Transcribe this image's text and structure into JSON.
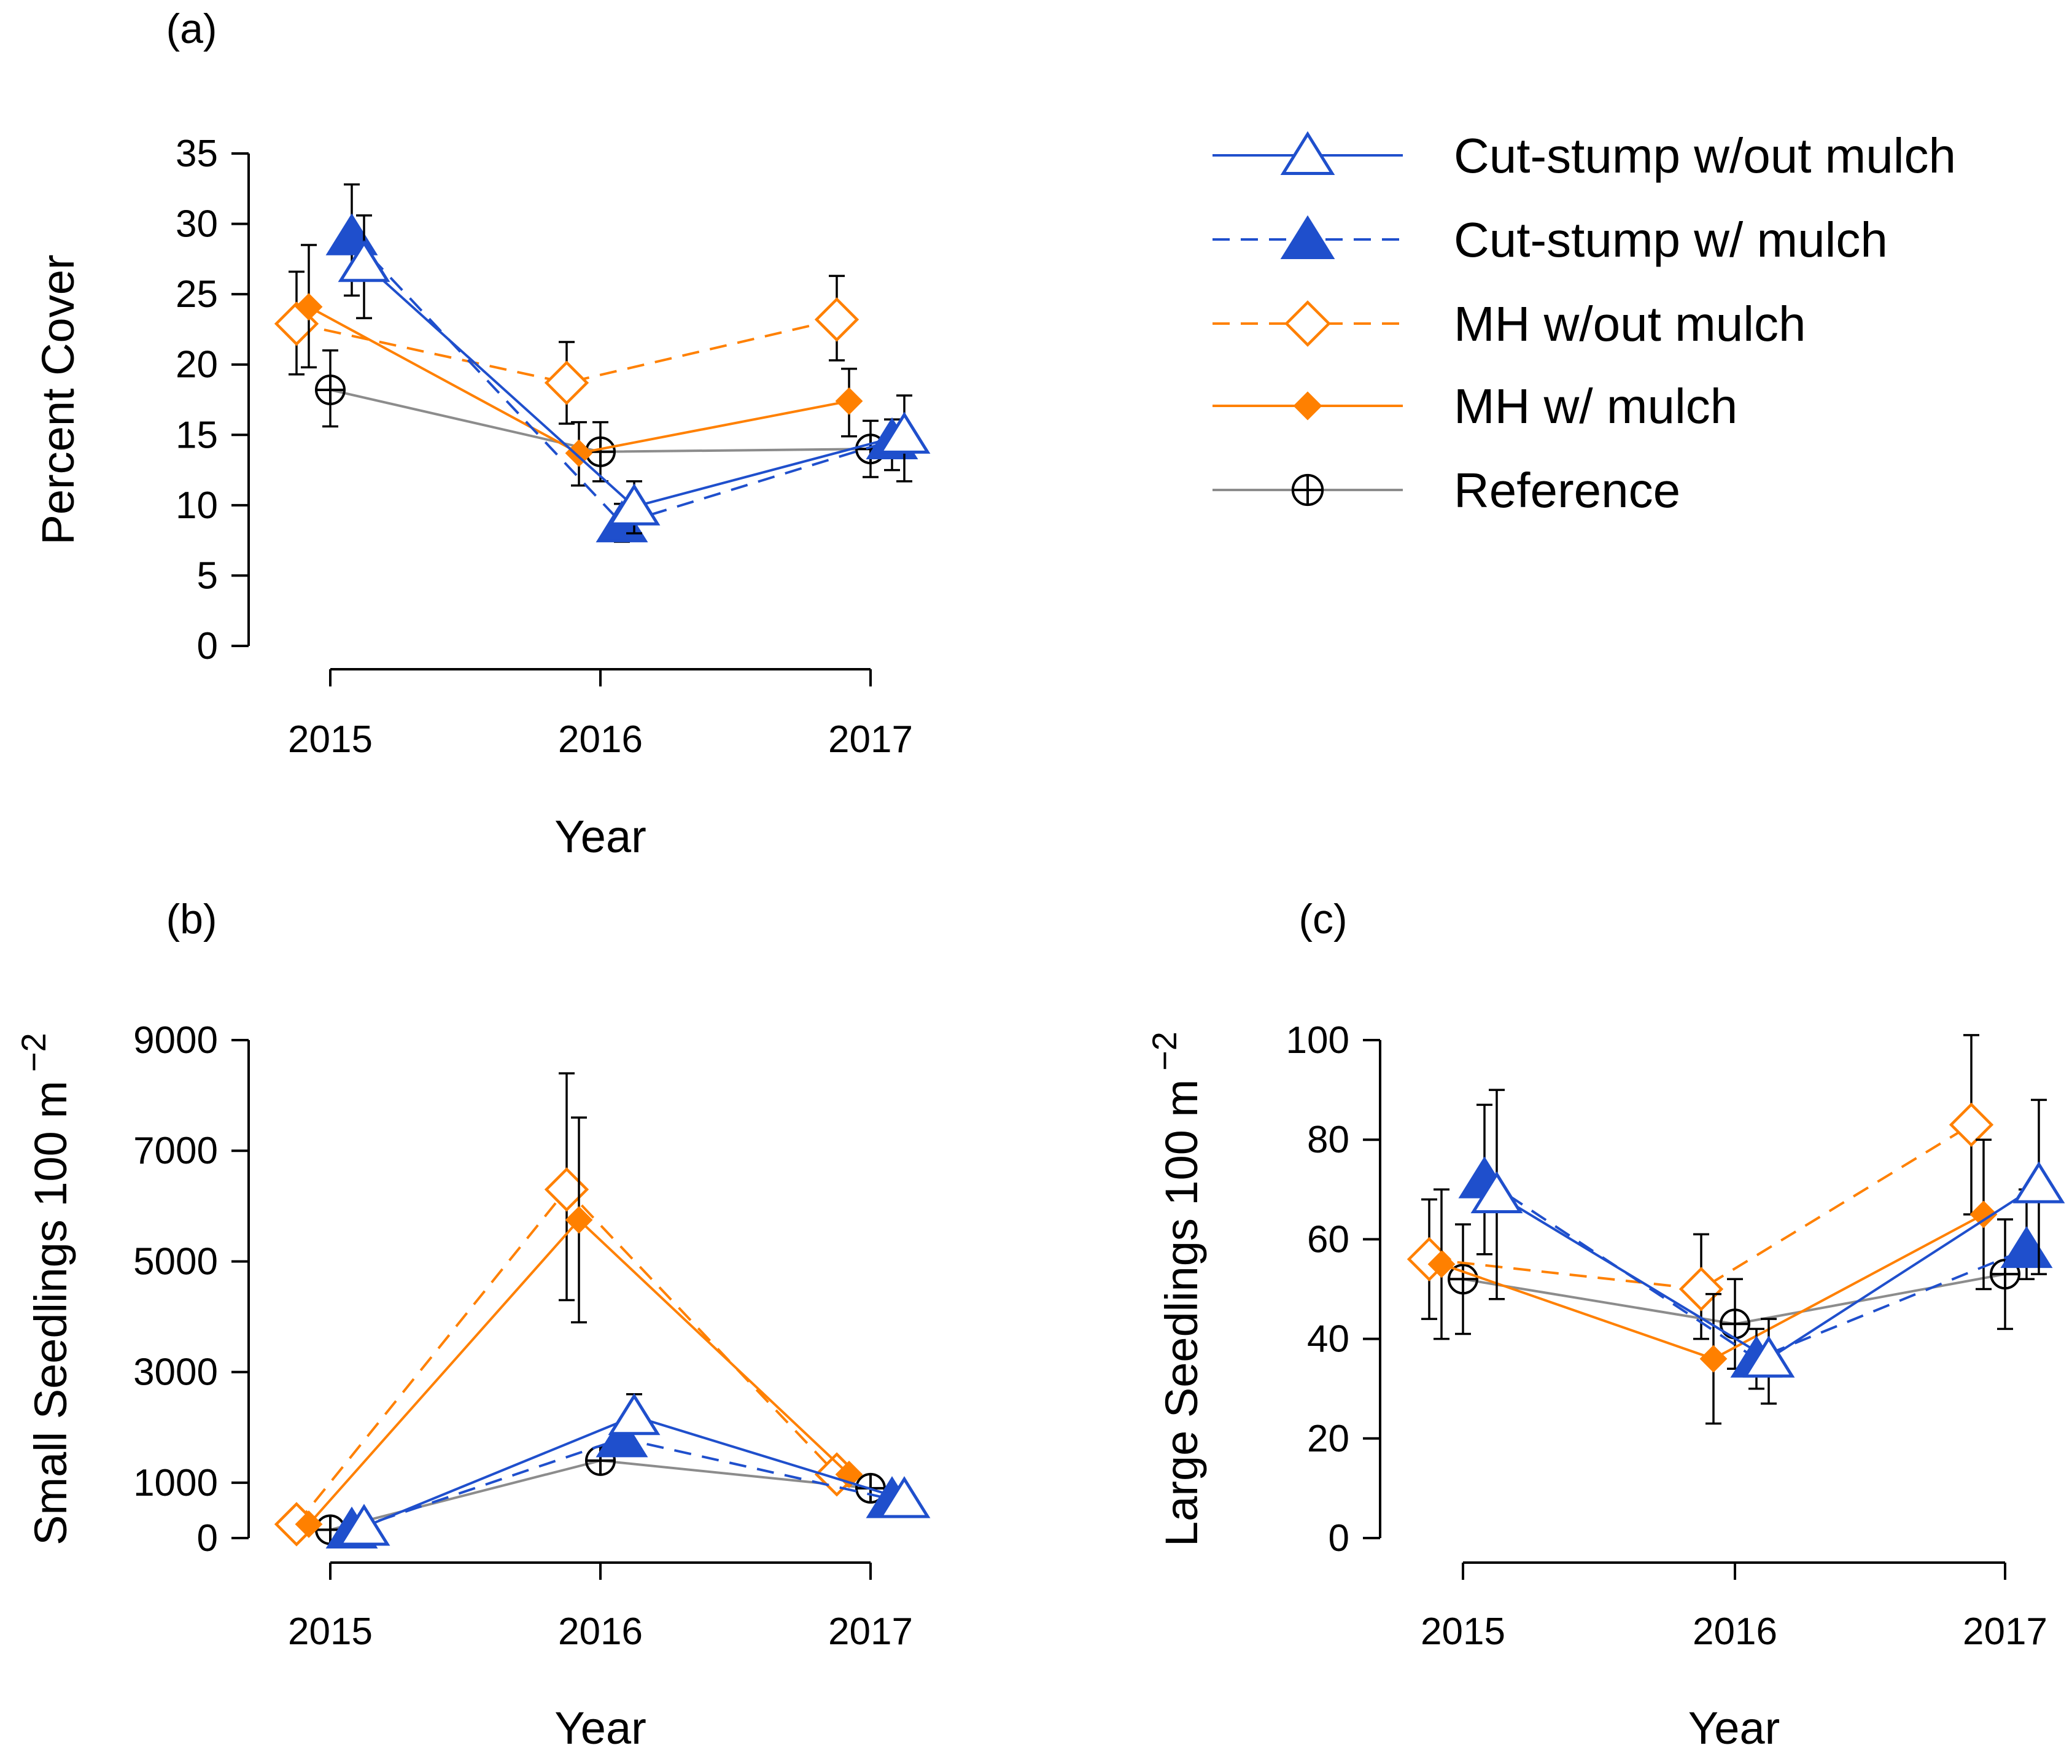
{
  "colors": {
    "blue": "#1f4fcc",
    "orange": "#ff8000",
    "gray": "#8c8c8c",
    "black": "#000000"
  },
  "legend": [
    {
      "key": "cs_wo",
      "label": "Cut-stump w/out mulch"
    },
    {
      "key": "cs_w",
      "label": "Cut-stump w/ mulch"
    },
    {
      "key": "mh_wo",
      "label": "MH w/out mulch"
    },
    {
      "key": "mh_w",
      "label": "MH w/ mulch"
    },
    {
      "key": "ref",
      "label": "Reference"
    }
  ],
  "chart_data": [
    {
      "panel_label": "(a)",
      "type": "line",
      "xlabel": "Year",
      "ylabel": "Percent Cover",
      "categories": [
        "2015",
        "2016",
        "2017"
      ],
      "ylim": [
        0,
        35
      ],
      "yticks": [
        0,
        5,
        10,
        15,
        20,
        25,
        30,
        35
      ],
      "series": [
        {
          "key": "cs_wo",
          "name": "Cut-stump w/out mulch",
          "values": [
            27.2,
            9.9,
            15.0
          ],
          "err_low": [
            3.9,
            1.9,
            3.3
          ],
          "err_high": [
            3.4,
            1.8,
            2.8
          ]
        },
        {
          "key": "cs_w",
          "name": "Cut-stump w/ mulch",
          "values": [
            29.1,
            8.7,
            14.6
          ],
          "err_low": [
            4.2,
            1.3,
            2.1
          ],
          "err_high": [
            3.7,
            1.4,
            1.5
          ]
        },
        {
          "key": "mh_wo",
          "name": "MH w/out mulch",
          "values": [
            22.9,
            18.7,
            23.2
          ],
          "err_low": [
            3.6,
            2.9,
            2.9
          ],
          "err_high": [
            3.7,
            2.9,
            3.1
          ]
        },
        {
          "key": "mh_w",
          "name": "MH w/ mulch",
          "values": [
            24.1,
            13.7,
            17.4
          ],
          "err_low": [
            4.3,
            2.3,
            2.5
          ],
          "err_high": [
            4.4,
            2.2,
            2.3
          ]
        },
        {
          "key": "ref",
          "name": "Reference",
          "values": [
            18.2,
            13.8,
            14.0
          ],
          "err_low": [
            2.6,
            2.1,
            2.0
          ],
          "err_high": [
            2.8,
            2.1,
            2.0
          ]
        }
      ]
    },
    {
      "panel_label": "(b)",
      "type": "line",
      "xlabel": "Year",
      "ylabel": "Small Seedlings 100 m",
      "ylabel_sup": "−2",
      "categories": [
        "2015",
        "2016",
        "2017"
      ],
      "ylim": [
        0,
        9000
      ],
      "yticks": [
        0,
        1000,
        3000,
        5000,
        7000,
        9000
      ],
      "series": [
        {
          "key": "cs_wo",
          "name": "Cut-stump w/out mulch",
          "values": [
            200,
            2200,
            700
          ],
          "err_low": [
            0,
            0,
            0
          ],
          "err_high": [
            0,
            400,
            0
          ]
        },
        {
          "key": "cs_w",
          "name": "Cut-stump w/ mulch",
          "values": [
            150,
            1800,
            700
          ],
          "err_low": [
            0,
            0,
            0
          ],
          "err_high": [
            0,
            0,
            0
          ]
        },
        {
          "key": "mh_wo",
          "name": "MH w/out mulch",
          "values": [
            250,
            6300,
            1150
          ],
          "err_low": [
            0,
            2000,
            0
          ],
          "err_high": [
            0,
            2100,
            0
          ]
        },
        {
          "key": "mh_w",
          "name": "MH w/ mulch",
          "values": [
            250,
            5750,
            1150
          ],
          "err_low": [
            0,
            1850,
            0
          ],
          "err_high": [
            0,
            1850,
            0
          ]
        },
        {
          "key": "ref",
          "name": "Reference",
          "values": [
            150,
            1400,
            900
          ],
          "err_low": [
            0,
            0,
            0
          ],
          "err_high": [
            0,
            0,
            0
          ]
        }
      ]
    },
    {
      "panel_label": "(c)",
      "type": "line",
      "xlabel": "Year",
      "ylabel": "Large Seedlings 100 m",
      "ylabel_sup": "−2",
      "categories": [
        "2015",
        "2016",
        "2017"
      ],
      "ylim": [
        0,
        100
      ],
      "yticks": [
        0,
        20,
        40,
        60,
        80,
        100
      ],
      "series": [
        {
          "key": "cs_wo",
          "name": "Cut-stump w/out mulch",
          "values": [
            69,
            36,
            71
          ],
          "err_low": [
            21,
            9,
            18
          ],
          "err_high": [
            21,
            8,
            17
          ]
        },
        {
          "key": "cs_w",
          "name": "Cut-stump w/ mulch",
          "values": [
            72,
            36,
            58
          ],
          "err_low": [
            15,
            6,
            6
          ],
          "err_high": [
            15,
            6,
            12
          ]
        },
        {
          "key": "mh_wo",
          "name": "MH w/out mulch",
          "values": [
            56,
            50,
            83
          ],
          "err_low": [
            12,
            10,
            18
          ],
          "err_high": [
            12,
            11,
            18
          ]
        },
        {
          "key": "mh_w",
          "name": "MH w/ mulch",
          "values": [
            55,
            36,
            65
          ],
          "err_low": [
            15,
            13,
            15
          ],
          "err_high": [
            15,
            13,
            15
          ]
        },
        {
          "key": "ref",
          "name": "Reference",
          "values": [
            52,
            43,
            53
          ],
          "err_low": [
            11,
            9,
            11
          ],
          "err_high": [
            11,
            9,
            11
          ]
        }
      ]
    }
  ]
}
